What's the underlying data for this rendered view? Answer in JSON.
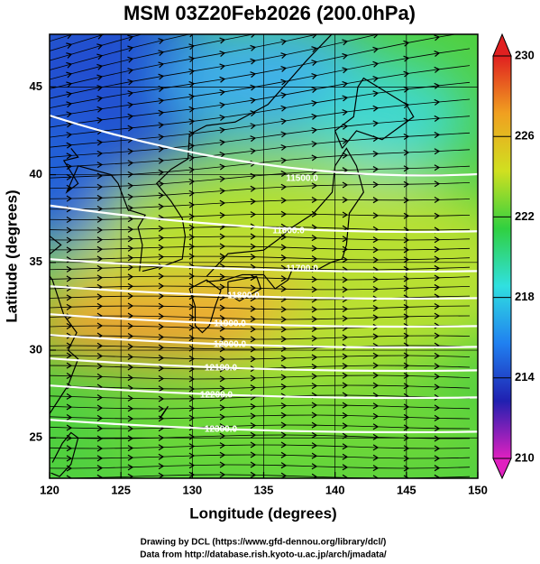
{
  "chart_data": {
    "type": "contour",
    "title": "MSM 03Z20Feb2026 (200.0hPa)",
    "x_label": "Longitude (degrees)",
    "y_label": "Latitude  (degrees)",
    "xlim": [
      120,
      150
    ],
    "ylim": [
      22.7,
      48.0
    ],
    "xticks": [
      120,
      125,
      130,
      135,
      140,
      145,
      150
    ],
    "yticks": [
      25,
      30,
      35,
      40,
      45
    ],
    "grid": true,
    "contour_labels": [
      "11500.0",
      "11600.0",
      "11700.0",
      "11800.0",
      "11900.0",
      "12000.0",
      "12100.0",
      "12200.0",
      "12300.0"
    ],
    "colorbar": {
      "lim": [
        210,
        230
      ],
      "ticks": [
        210,
        214,
        218,
        222,
        226,
        230
      ],
      "colors": [
        "#e020c0",
        "#2020b0",
        "#2080f0",
        "#30e0e0",
        "#30d040",
        "#d0e020",
        "#f0a020",
        "#e02020"
      ]
    },
    "credits": [
      "Drawing by DCL (https://www.gfd-dennou.org/library/dcl/)",
      "Data from http://database.rish.kyoto-u.ac.jp/arch/jmadata/"
    ]
  }
}
